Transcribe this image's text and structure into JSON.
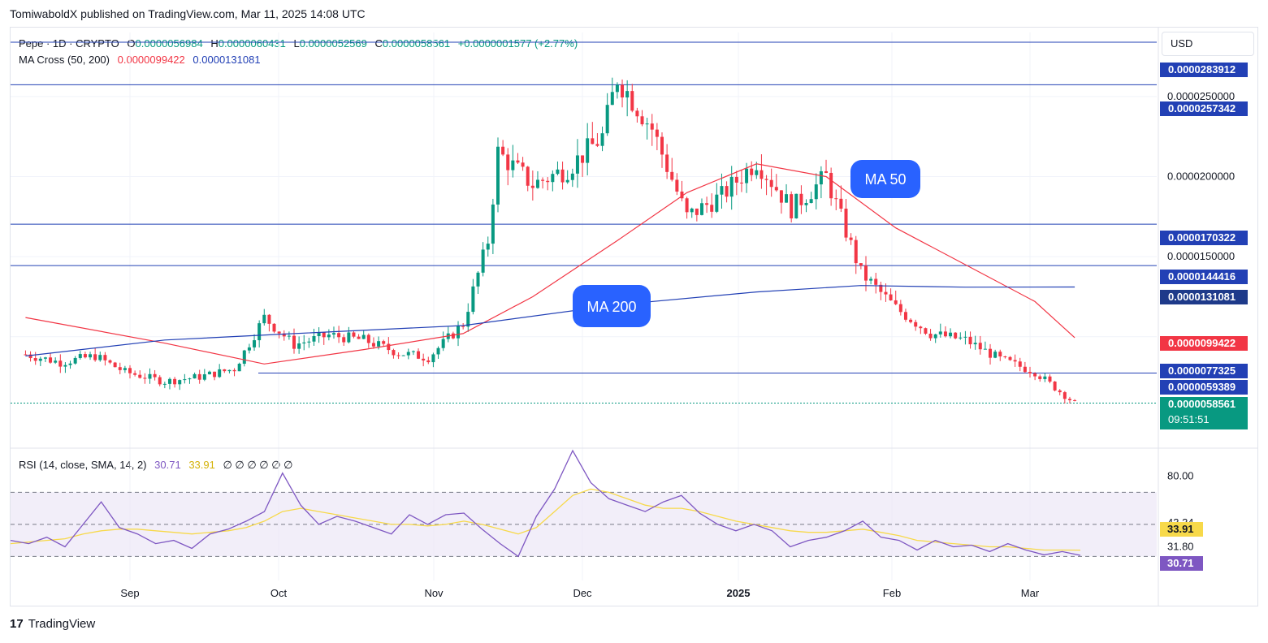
{
  "publish_line": "TomiwaboldX published on TradingView.com, Mar 11, 2025 14:08 UTC",
  "currency_button": "USD",
  "legend": {
    "symbol": "Pepe · 1D · CRYPTO",
    "open_label": "O",
    "open": "0.0000056984",
    "high_label": "H",
    "high": "0.0000060431",
    "low_label": "L",
    "low": "0.0000052569",
    "close_label": "C",
    "close": "0.0000058561",
    "change": "+0.0000001577 (+2.77%)",
    "ma_label": "MA Cross (50, 200)",
    "ma50_value": "0.0000099422",
    "ma200_value": "0.0000131081",
    "rsi_label": "RSI (14, close, SMA, 14, 2)",
    "rsi_value": "30.71",
    "rsi_sma_value": "33.91",
    "rsi_extra": "∅ ∅ ∅ ∅ ∅ ∅"
  },
  "annotations": {
    "ma50": "MA 50",
    "ma200": "MA 200"
  },
  "countdown": "09:51:51",
  "colors": {
    "up": "#089981",
    "down": "#f23645",
    "ma50": "#f23645",
    "ma200": "#2240b5",
    "hline": "#2240b5",
    "rsi": "#7e57c2",
    "rsi_sma": "#f7d94a",
    "rsi_band": "#ede7f6"
  },
  "brand": "TradingView",
  "chart_data": [
    {
      "type": "candlestick",
      "title": "Pepe · 1D · CRYPTO",
      "x_ticks": [
        "Sep",
        "Oct",
        "Nov",
        "Dec",
        "2025",
        "Feb",
        "Mar"
      ],
      "y_ticks": [
        "0.0000250000",
        "0.0000200000",
        "0.0000150000"
      ],
      "ylim": [
        3.4e-06,
        2.9e-05
      ],
      "grid": true,
      "horizontal_levels": [
        2.83912e-05,
        2.57342e-05,
        1.70322e-05,
        1.44416e-05,
        7.7325e-06
      ],
      "price_labels": [
        {
          "value": "0.0000283912",
          "role": "level"
        },
        {
          "value": "0.0000257342",
          "role": "level"
        },
        {
          "value": "0.0000170322",
          "role": "level"
        },
        {
          "value": "0.0000144416",
          "role": "level"
        },
        {
          "value": "0.0000131081",
          "role": "ma200"
        },
        {
          "value": "0.0000099422",
          "role": "ma50"
        },
        {
          "value": "0.0000077325",
          "role": "level"
        },
        {
          "value": "0.0000059389",
          "role": "level"
        },
        {
          "value": "0.0000058561",
          "role": "last"
        }
      ],
      "close_series": {
        "name": "Pepe",
        "points": [
          [
            "2025-08-11",
            8.9e-06
          ],
          [
            "2025-08-18",
            8.4e-06
          ],
          [
            "2025-08-25",
            8.8e-06
          ],
          [
            "2025-08-31",
            7.8e-06
          ],
          [
            "2025-09-08",
            7.2e-06
          ],
          [
            "2025-09-15",
            7.5e-06
          ],
          [
            "2025-09-22",
            8e-06
          ],
          [
            "2025-09-28",
            1.12e-05
          ],
          [
            "2025-10-04",
            9.5e-06
          ],
          [
            "2025-10-11",
            1.01e-05
          ],
          [
            "2025-10-18",
            9.8e-06
          ],
          [
            "2025-10-25",
            9e-06
          ],
          [
            "2025-10-31",
            8.7e-06
          ],
          [
            "2025-11-07",
            1.08e-05
          ],
          [
            "2025-11-12",
            1.6e-05
          ],
          [
            "2025-11-14",
            2.15e-05
          ],
          [
            "2025-11-21",
            1.95e-05
          ],
          [
            "2025-11-28",
            2.05e-05
          ],
          [
            "2025-12-05",
            2.25e-05
          ],
          [
            "2025-12-08",
            2.62e-05
          ],
          [
            "2025-12-15",
            2.3e-05
          ],
          [
            "2025-12-22",
            1.75e-05
          ],
          [
            "2025-12-29",
            1.88e-05
          ],
          [
            "2025-01-05",
            2.1e-05
          ],
          [
            "2025-01-12",
            1.8e-05
          ],
          [
            "2025-01-19",
            2e-05
          ],
          [
            "2025-01-26",
            1.4e-05
          ],
          [
            "2025-02-02",
            1.18e-05
          ],
          [
            "2025-02-09",
            1.02e-05
          ],
          [
            "2025-02-16",
            9.8e-06
          ],
          [
            "2025-02-23",
            8.6e-06
          ],
          [
            "2025-03-02",
            7.8e-06
          ],
          [
            "2025-03-10",
            5.8561e-06
          ]
        ]
      },
      "ma50": {
        "name": "MA 50",
        "points": [
          [
            "2025-08-11",
            1.12e-05
          ],
          [
            "2025-09-08",
            9.6e-06
          ],
          [
            "2025-09-28",
            8.3e-06
          ],
          [
            "2025-10-18",
            9.2e-06
          ],
          [
            "2025-11-07",
            1.02e-05
          ],
          [
            "2025-11-21",
            1.25e-05
          ],
          [
            "2025-12-08",
            1.6e-05
          ],
          [
            "2025-12-22",
            1.9e-05
          ],
          [
            "2025-01-05",
            2.08e-05
          ],
          [
            "2025-01-19",
            2e-05
          ],
          [
            "2025-02-02",
            1.68e-05
          ],
          [
            "2025-02-16",
            1.45e-05
          ],
          [
            "2025-03-02",
            1.22e-05
          ],
          [
            "2025-03-10",
            9.9422e-06
          ]
        ]
      },
      "ma200": {
        "name": "MA 200",
        "points": [
          [
            "2025-08-11",
            8.8e-06
          ],
          [
            "2025-09-08",
            9.8e-06
          ],
          [
            "2025-10-04",
            1.02e-05
          ],
          [
            "2025-11-07",
            1.07e-05
          ],
          [
            "2025-12-08",
            1.2e-05
          ],
          [
            "2025-01-05",
            1.28e-05
          ],
          [
            "2025-01-26",
            1.32e-05
          ],
          [
            "2025-02-16",
            1.31e-05
          ],
          [
            "2025-03-10",
            1.31081e-05
          ]
        ]
      }
    },
    {
      "type": "line",
      "title": "RSI (14, close, SMA, 14, 2)",
      "y_ticks": [
        "80.00",
        "43.34",
        "31.80"
      ],
      "ylim": [
        15,
        96
      ],
      "band": [
        30,
        70
      ],
      "value_labels": [
        {
          "value": "33.91",
          "role": "sma"
        },
        {
          "value": "30.71",
          "role": "rsi"
        }
      ],
      "series": [
        {
          "name": "RSI",
          "values": [
            40,
            38,
            42,
            36,
            50,
            64,
            48,
            44,
            38,
            40,
            35,
            44,
            47,
            52,
            58,
            82,
            62,
            50,
            55,
            52,
            48,
            44,
            56,
            50,
            56,
            57,
            47,
            38,
            30,
            55,
            72,
            96,
            76,
            66,
            62,
            58,
            64,
            68,
            57,
            50,
            46,
            50,
            46,
            36,
            40,
            42,
            46,
            52,
            42,
            40,
            34,
            40,
            36,
            37,
            33,
            38,
            34,
            31,
            33,
            30.71
          ]
        },
        {
          "name": "SMA",
          "values": [
            38,
            39,
            40,
            41,
            44,
            46,
            47,
            47,
            46,
            45,
            44,
            45,
            46,
            48,
            52,
            58,
            60,
            58,
            56,
            54,
            52,
            50,
            50,
            49,
            50,
            52,
            50,
            47,
            44,
            48,
            58,
            68,
            72,
            70,
            66,
            62,
            60,
            60,
            58,
            55,
            52,
            50,
            48,
            46,
            45,
            45,
            46,
            47,
            45,
            43,
            40,
            39,
            38,
            37,
            36,
            36,
            35,
            34,
            34,
            33.91
          ]
        }
      ]
    }
  ]
}
